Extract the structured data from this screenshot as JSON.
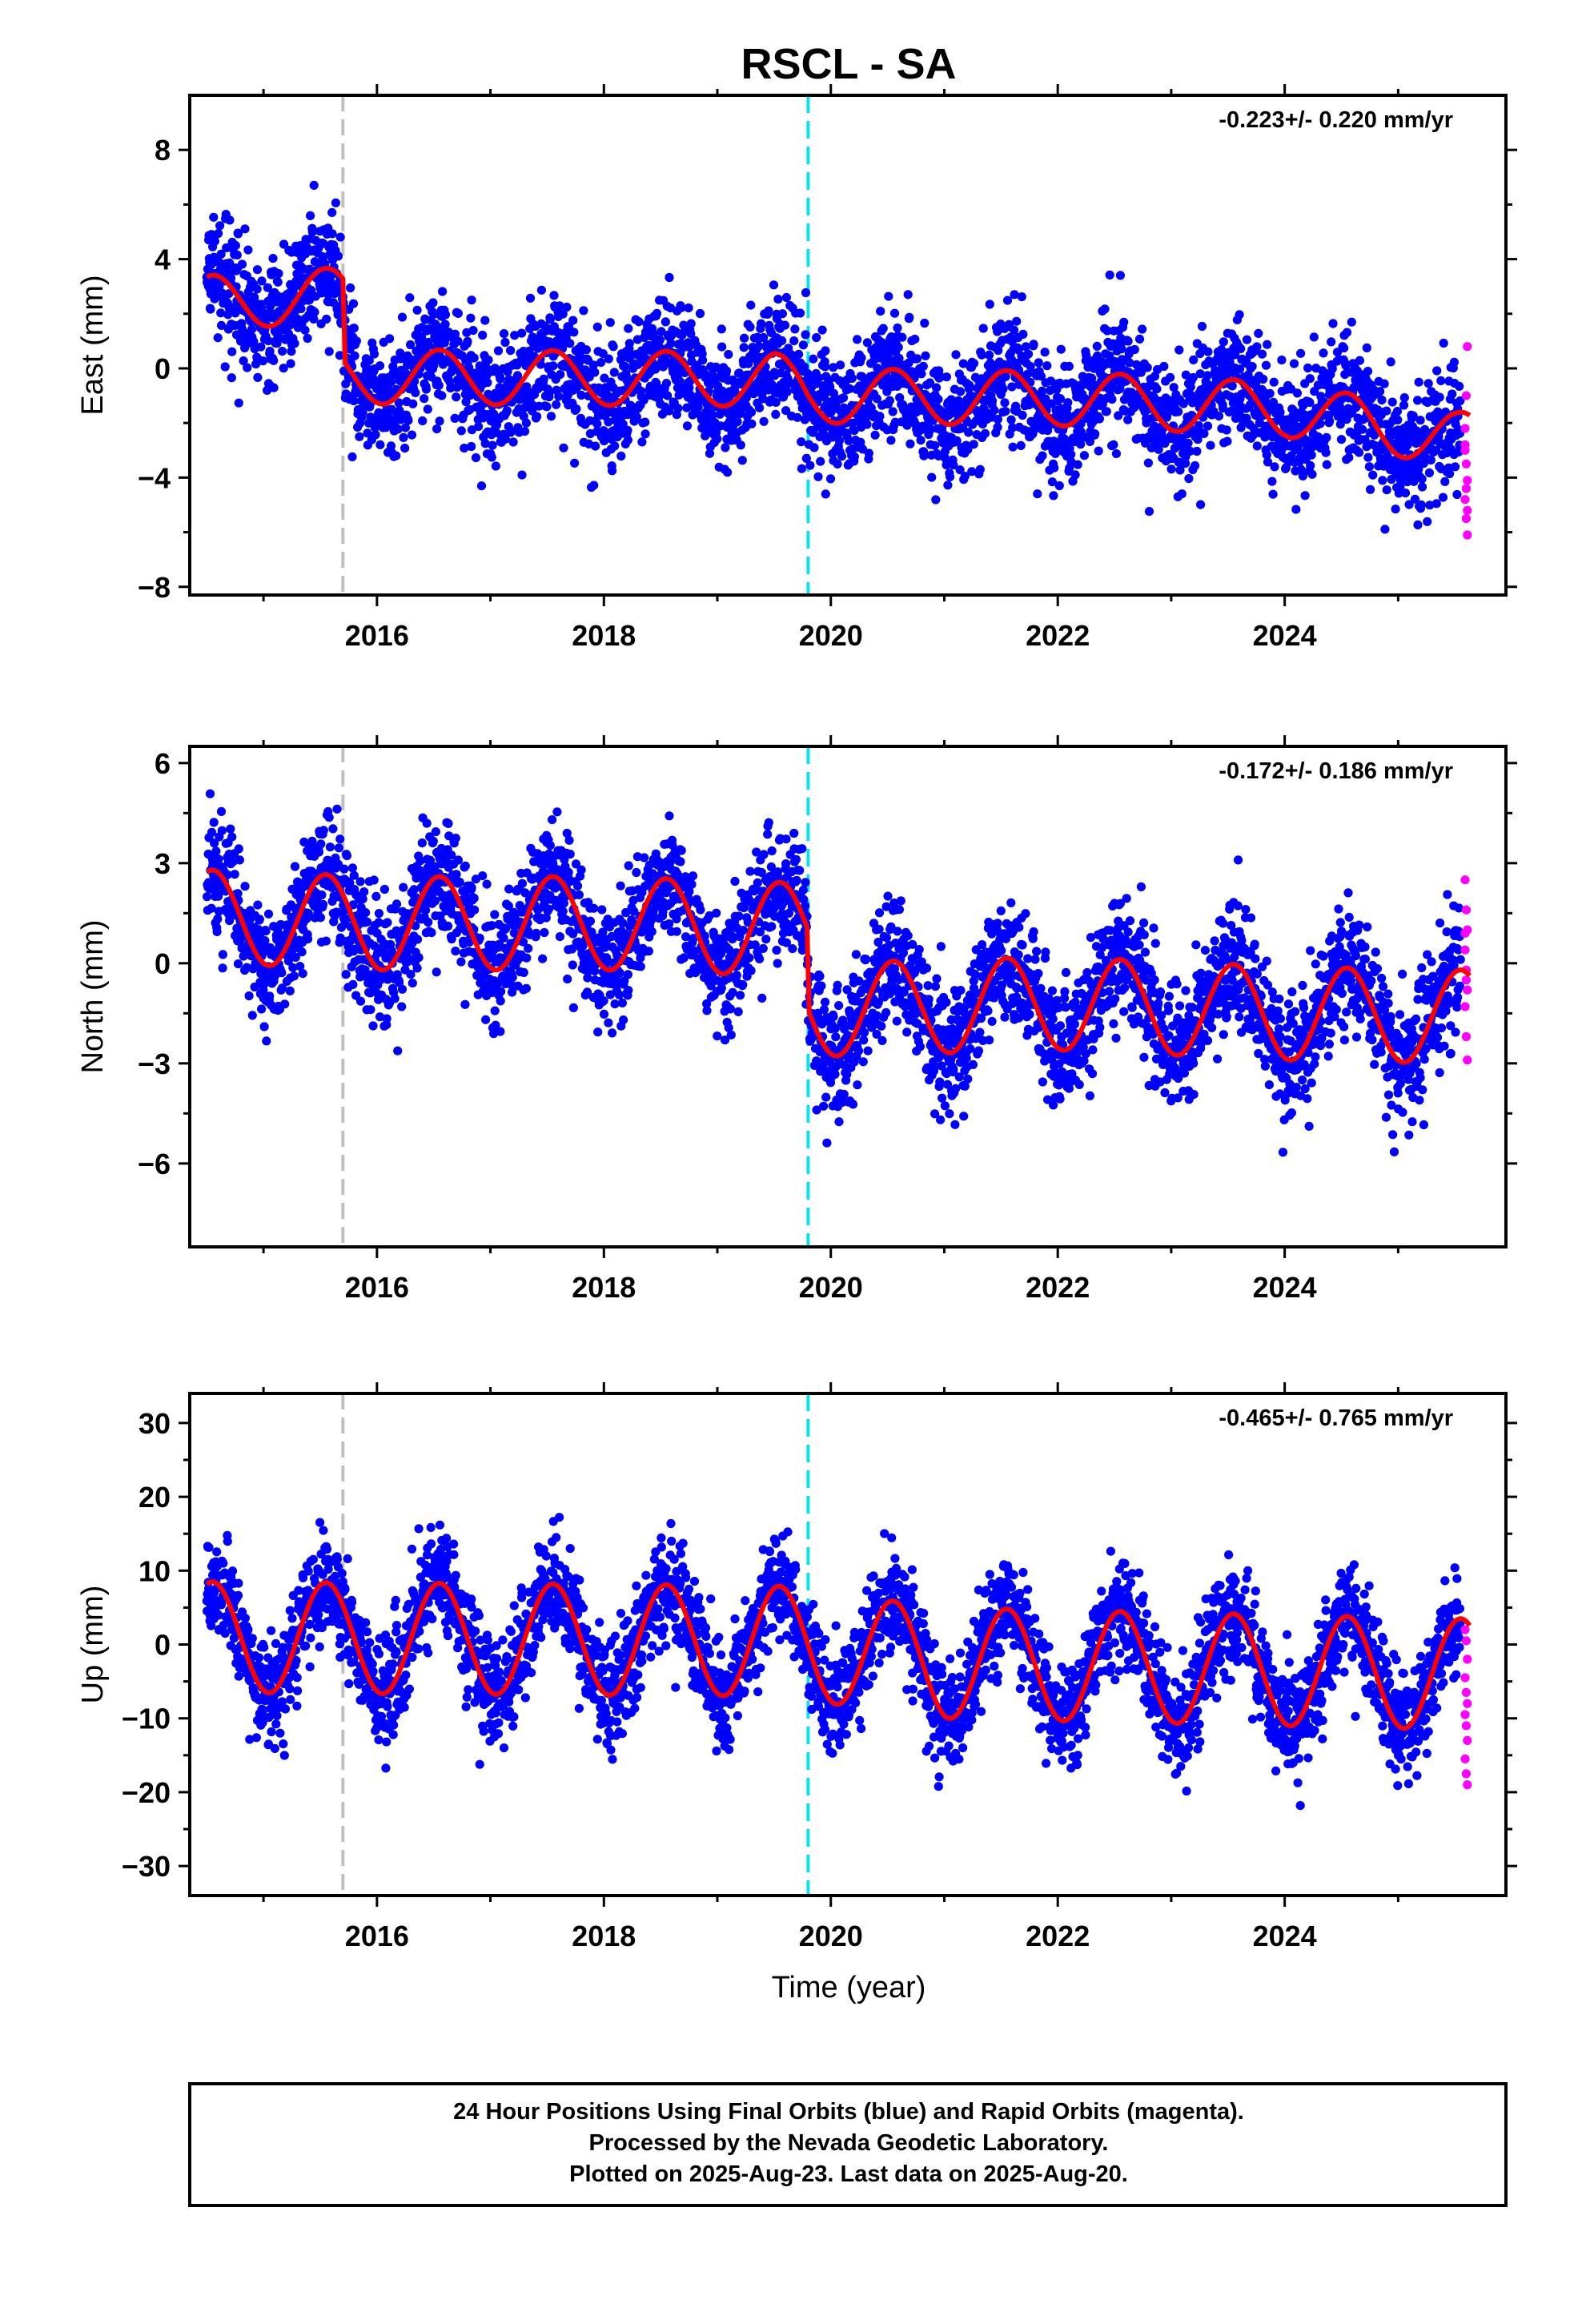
{
  "figure": {
    "title": "RSCL - SA",
    "xlabel": "Time (year)",
    "footer": [
      "24 Hour Positions Using Final Orbits (blue) and Rapid Orbits (magenta).",
      "Processed by the Nevada Geodetic Laboratory.",
      "Plotted on 2025-Aug-23. Last data on 2025-Aug-20."
    ]
  },
  "colors": {
    "final_orbits": "#0000ff",
    "rapid_orbits": "#ff00ff",
    "model_fit": "#ff0000",
    "equipment_change": "#c0c0c0",
    "earthquake": "#00e5ee",
    "axis": "#000000"
  },
  "chart_data": [
    {
      "type": "scatter",
      "component": "East",
      "ylabel": "East (mm)",
      "rate_label": "-0.223+/- 0.220 mm/yr",
      "xlim": [
        2014.35,
        2025.95
      ],
      "ylim": [
        -8.3,
        10
      ],
      "x_ticks": [
        2016,
        2018,
        2020,
        2022,
        2024
      ],
      "y_ticks": [
        -8,
        -4,
        0,
        4,
        8
      ],
      "y_tick_labels": [
        "−8",
        "−4",
        "0",
        "4",
        "8"
      ],
      "equipment_change_year": 2015.7,
      "earthquake_year": 2019.8,
      "data_start": 2014.5,
      "data_end": 2025.63,
      "rapid_start": 2025.55,
      "series": [
        {
          "name": "Final Orbits",
          "trend_points": [
            [
              2014.5,
              2.4
            ],
            [
              2015.7,
              2.7
            ],
            [
              2015.72,
              -0.3
            ],
            [
              2019.5,
              -0.4
            ],
            [
              2019.8,
              -1.0
            ],
            [
              2022.0,
              -1.1
            ],
            [
              2024.0,
              -1.5
            ],
            [
              2025.5,
              -2.6
            ]
          ],
          "seasonal_amplitude": 1.0,
          "scatter_sigma": 1.1
        },
        {
          "name": "Rapid Orbits",
          "values": [
            -2.8,
            -3.5,
            -4.1,
            -4.8,
            -5.5,
            -6.1,
            -2.2,
            -1.0,
            0.8,
            -3.0,
            -4.4,
            -5.2
          ]
        }
      ]
    },
    {
      "type": "scatter",
      "component": "North",
      "ylabel": "North (mm)",
      "rate_label": "-0.172+/- 0.186 mm/yr",
      "xlim": [
        2014.35,
        2025.95
      ],
      "ylim": [
        -8.5,
        6.5
      ],
      "x_ticks": [
        2016,
        2018,
        2020,
        2022,
        2024
      ],
      "y_ticks": [
        -6,
        -3,
        0,
        3,
        6
      ],
      "y_tick_labels": [
        "−6",
        "−3",
        "0",
        "3",
        "6"
      ],
      "equipment_change_year": 2015.7,
      "earthquake_year": 2019.8,
      "data_start": 2014.5,
      "data_end": 2025.63,
      "rapid_start": 2025.55,
      "series": [
        {
          "name": "Final Orbits",
          "trend_points": [
            [
              2014.5,
              1.4
            ],
            [
              2016.0,
              1.2
            ],
            [
              2018.0,
              1.2
            ],
            [
              2019.79,
              1.0
            ],
            [
              2019.81,
              -1.4
            ],
            [
              2022.0,
              -1.2
            ],
            [
              2024.0,
              -1.5
            ],
            [
              2025.5,
              -1.6
            ]
          ],
          "seasonal_amplitude": 1.4,
          "scatter_sigma": 0.9
        },
        {
          "name": "Rapid Orbits",
          "values": [
            2.5,
            1.6,
            1.0,
            0.4,
            -0.2,
            -0.8,
            -1.3,
            -2.2,
            -2.9,
            0.9,
            -0.5
          ]
        }
      ]
    },
    {
      "type": "scatter",
      "component": "Up",
      "ylabel": "Up (mm)",
      "rate_label": "-0.465+/- 0.765 mm/yr",
      "xlim": [
        2014.35,
        2025.95
      ],
      "ylim": [
        -34,
        34
      ],
      "x_ticks": [
        2016,
        2018,
        2020,
        2022,
        2024
      ],
      "y_ticks": [
        -30,
        -20,
        -10,
        0,
        10,
        20,
        30
      ],
      "y_tick_labels": [
        "−30",
        "−20",
        "−10",
        "0",
        "10",
        "20",
        "30"
      ],
      "equipment_change_year": 2015.7,
      "earthquake_year": 2019.8,
      "data_start": 2014.5,
      "data_end": 2025.63,
      "rapid_start": 2025.55,
      "series": [
        {
          "name": "Final Orbits",
          "trend_points": [
            [
              2014.5,
              1.0
            ],
            [
              2019.5,
              0.5
            ],
            [
              2021.0,
              -2.5
            ],
            [
              2025.5,
              -4.0
            ]
          ],
          "seasonal_amplitude": 7.5,
          "scatter_sigma": 3.6
        },
        {
          "name": "Rapid Orbits",
          "values": [
            2.0,
            0.5,
            -2.0,
            -4.5,
            -6.5,
            -8.0,
            -9.5,
            -11.0,
            -13.0,
            -15.5,
            -17.5,
            -19.0
          ]
        }
      ]
    }
  ]
}
